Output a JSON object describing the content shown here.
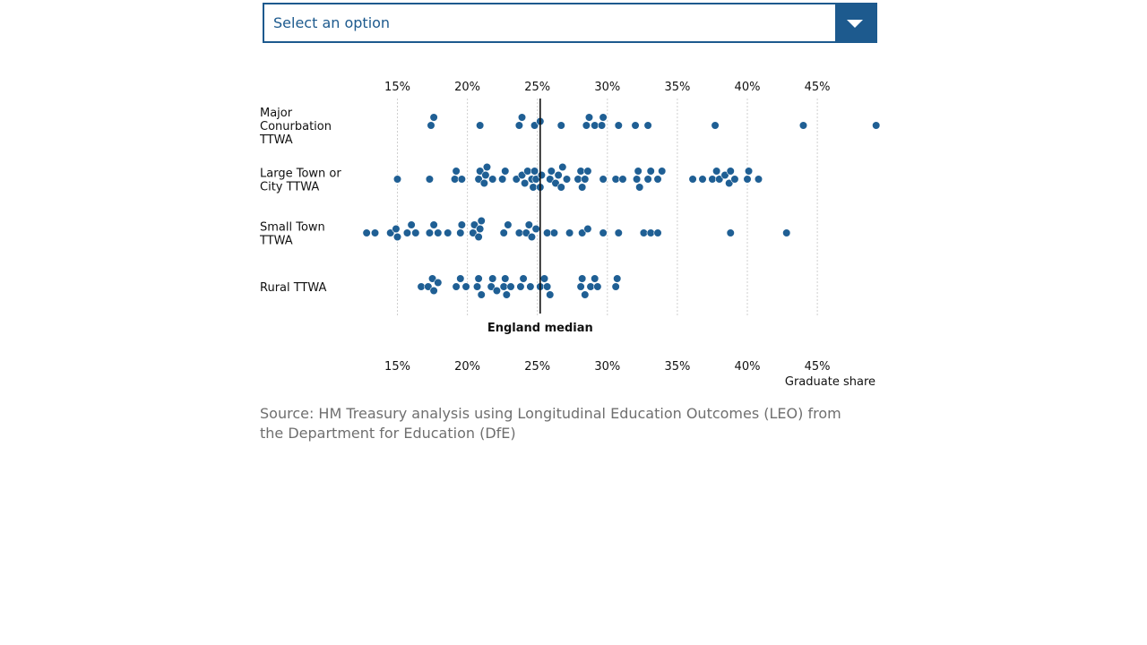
{
  "dropdown": {
    "label": "Select an option",
    "icon": "chevron-down-icon"
  },
  "colors": {
    "accent": "#1d5a8e",
    "dot": "#1f5f94",
    "grid": "#cfcfcf",
    "median": "#111111",
    "source_text": "#6f6f6f"
  },
  "chart_data": {
    "type": "scatter",
    "xlabel": "Graduate share",
    "xlim": [
      12,
      49.5
    ],
    "xticks": [
      15,
      20,
      25,
      30,
      35,
      40,
      45
    ],
    "xtick_labels": [
      "15%",
      "20%",
      "25%",
      "30%",
      "35%",
      "40%",
      "45%"
    ],
    "grid": true,
    "median": {
      "label": "England median",
      "value": 25.2
    },
    "categories": [
      "Major Conurbation TTWA",
      "Large Town or City TTWA",
      "Small Town TTWA",
      "Rural TTWA"
    ],
    "series": [
      {
        "name": "Major Conurbation TTWA",
        "values": [
          17.4,
          17.6,
          20.9,
          23.7,
          23.9,
          24.8,
          25.2,
          26.7,
          28.5,
          28.7,
          29.1,
          29.6,
          29.7,
          30.8,
          32.0,
          32.9,
          37.7,
          44.0,
          49.2
        ]
      },
      {
        "name": "Large Town or City TTWA",
        "values": [
          15.0,
          17.3,
          19.1,
          19.2,
          19.6,
          20.8,
          20.9,
          21.2,
          21.3,
          21.4,
          21.8,
          22.5,
          22.7,
          23.5,
          23.9,
          24.1,
          24.3,
          24.6,
          24.7,
          24.8,
          24.9,
          25.2,
          25.3,
          25.9,
          26.0,
          26.3,
          26.5,
          26.7,
          26.8,
          27.1,
          27.9,
          28.1,
          28.2,
          28.4,
          28.6,
          29.7,
          30.6,
          31.1,
          32.1,
          32.2,
          32.3,
          32.9,
          33.1,
          33.6,
          33.9,
          36.1,
          36.8,
          37.5,
          37.8,
          38.0,
          38.4,
          38.7,
          38.8,
          39.1,
          40.0,
          40.1,
          40.8
        ]
      },
      {
        "name": "Small Town TTWA",
        "values": [
          12.8,
          13.4,
          14.5,
          14.9,
          15.0,
          15.7,
          16.0,
          16.3,
          17.3,
          17.6,
          17.9,
          18.6,
          19.5,
          19.6,
          20.4,
          20.5,
          20.8,
          20.9,
          21.0,
          22.6,
          22.9,
          23.7,
          24.2,
          24.4,
          24.6,
          24.9,
          25.7,
          26.2,
          27.3,
          28.2,
          28.6,
          29.7,
          30.8,
          32.6,
          33.1,
          33.6,
          38.8,
          42.8
        ]
      },
      {
        "name": "Rural TTWA",
        "values": [
          16.7,
          17.2,
          17.5,
          17.6,
          17.9,
          19.2,
          19.5,
          19.9,
          20.7,
          20.8,
          21.0,
          21.7,
          21.8,
          22.1,
          22.6,
          22.7,
          22.8,
          23.1,
          23.8,
          24.0,
          24.5,
          25.2,
          25.5,
          25.7,
          25.9,
          28.1,
          28.2,
          28.4,
          28.8,
          29.1,
          29.3,
          30.6,
          30.7
        ]
      }
    ]
  },
  "source": "Source: HM Treasury analysis using Longitudinal Education Outcomes (LEO) from the Department for Education (DfE)"
}
